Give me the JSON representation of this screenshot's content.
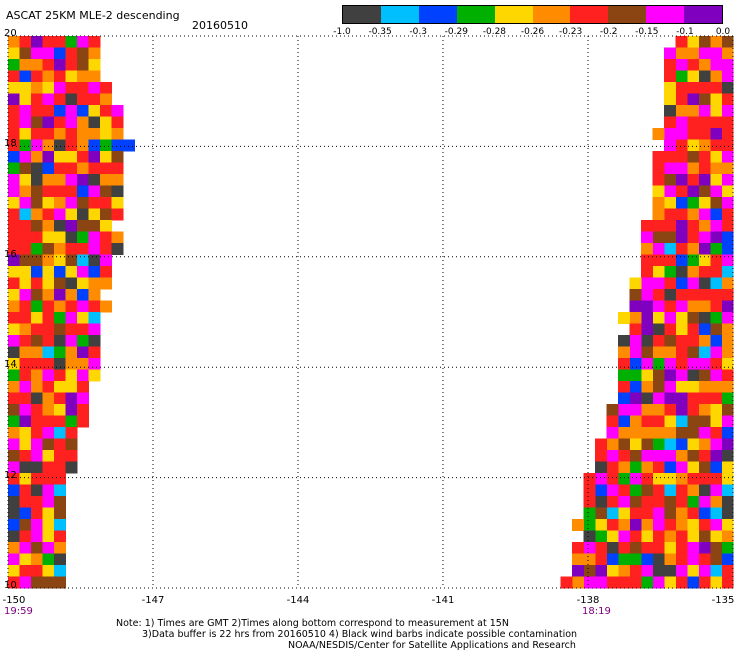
{
  "title": "ASCAT 25KM MLE-2 descending",
  "date": "20160510",
  "colorbar": {
    "colors": [
      "#404040",
      "#00bfff",
      "#0040ff",
      "#00b000",
      "#ffd700",
      "#ff8c00",
      "#ff2020",
      "#8b4513",
      "#ff00ff",
      "#8000c0"
    ],
    "labels": [
      "-1.0",
      "-0.35",
      "-0.3",
      "-0.29",
      "-0.28",
      "-0.26",
      "-0.23",
      "-0.2",
      "-0.15",
      "-0.1",
      "0.0"
    ]
  },
  "y_ticks": [
    "20",
    "18",
    "16",
    "14",
    "12",
    "10"
  ],
  "x_ticks": [
    "-150",
    "-147",
    "-144",
    "-141",
    "-138",
    "-135"
  ],
  "times": {
    "left": "19:59",
    "right": "18:19"
  },
  "notes": [
    "Note: 1) Times are GMT 2)Times along bottom correspond to measurement at 15N",
    "3)Data buffer is 22 hrs from 20160510 4) Black wind barbs indicate possible contamination",
    "NOAA/NESDIS/Center for Satellite Applications and Research"
  ],
  "chart_data": {
    "type": "heatmap",
    "title": "ASCAT 25KM MLE-2 descending",
    "xlim": [
      -150,
      -135
    ],
    "ylim": [
      10,
      20
    ],
    "x_ticks": [
      -150,
      -147,
      -144,
      -141,
      -138,
      -135
    ],
    "y_ticks": [
      10,
      12,
      14,
      16,
      18,
      20
    ],
    "grid": true,
    "color_scale": [
      -1.0,
      -0.35,
      -0.3,
      -0.29,
      -0.28,
      -0.26,
      -0.23,
      -0.2,
      -0.15,
      -0.1,
      0.0
    ],
    "swaths": [
      {
        "time": "19:59",
        "east_edge": [
          [
            20,
            -148.3
          ],
          [
            18,
            -147.6
          ],
          [
            16,
            -147.9
          ],
          [
            14,
            -148.3
          ],
          [
            12,
            -148.8
          ],
          [
            10,
            -149.1
          ]
        ]
      },
      {
        "time": "18:19",
        "west_edge": [
          [
            20,
            -136.1
          ],
          [
            18,
            -136.4
          ],
          [
            16,
            -136.8
          ],
          [
            14,
            -137.3
          ],
          [
            12,
            -137.8
          ],
          [
            10,
            -138.3
          ]
        ]
      }
    ]
  }
}
